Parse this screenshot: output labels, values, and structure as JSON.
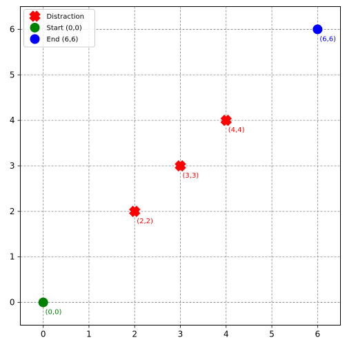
{
  "chart_data": {
    "type": "scatter",
    "xlim": [
      -0.5,
      6.5
    ],
    "ylim": [
      -0.5,
      6.5
    ],
    "xticks": [
      "0",
      "1",
      "2",
      "3",
      "4",
      "5",
      "6"
    ],
    "yticks": [
      "0",
      "1",
      "2",
      "3",
      "4",
      "5",
      "6"
    ],
    "grid": true,
    "legend_position": "top-left",
    "series": [
      {
        "name": "Distraction",
        "marker": "x",
        "color": "#ff0000",
        "points": [
          {
            "x": 2,
            "y": 2,
            "label": "(2,2)"
          },
          {
            "x": 3,
            "y": 3,
            "label": "(3,3)"
          },
          {
            "x": 4,
            "y": 4,
            "label": "(4,4)"
          }
        ]
      },
      {
        "name": "Start (0,0)",
        "marker": "circle",
        "color": "#008000",
        "points": [
          {
            "x": 0,
            "y": 0,
            "label": "(0,0)"
          }
        ]
      },
      {
        "name": "End (6,6)",
        "marker": "circle",
        "color": "#0000ff",
        "points": [
          {
            "x": 6,
            "y": 6,
            "label": "(6,6)"
          }
        ]
      }
    ]
  }
}
